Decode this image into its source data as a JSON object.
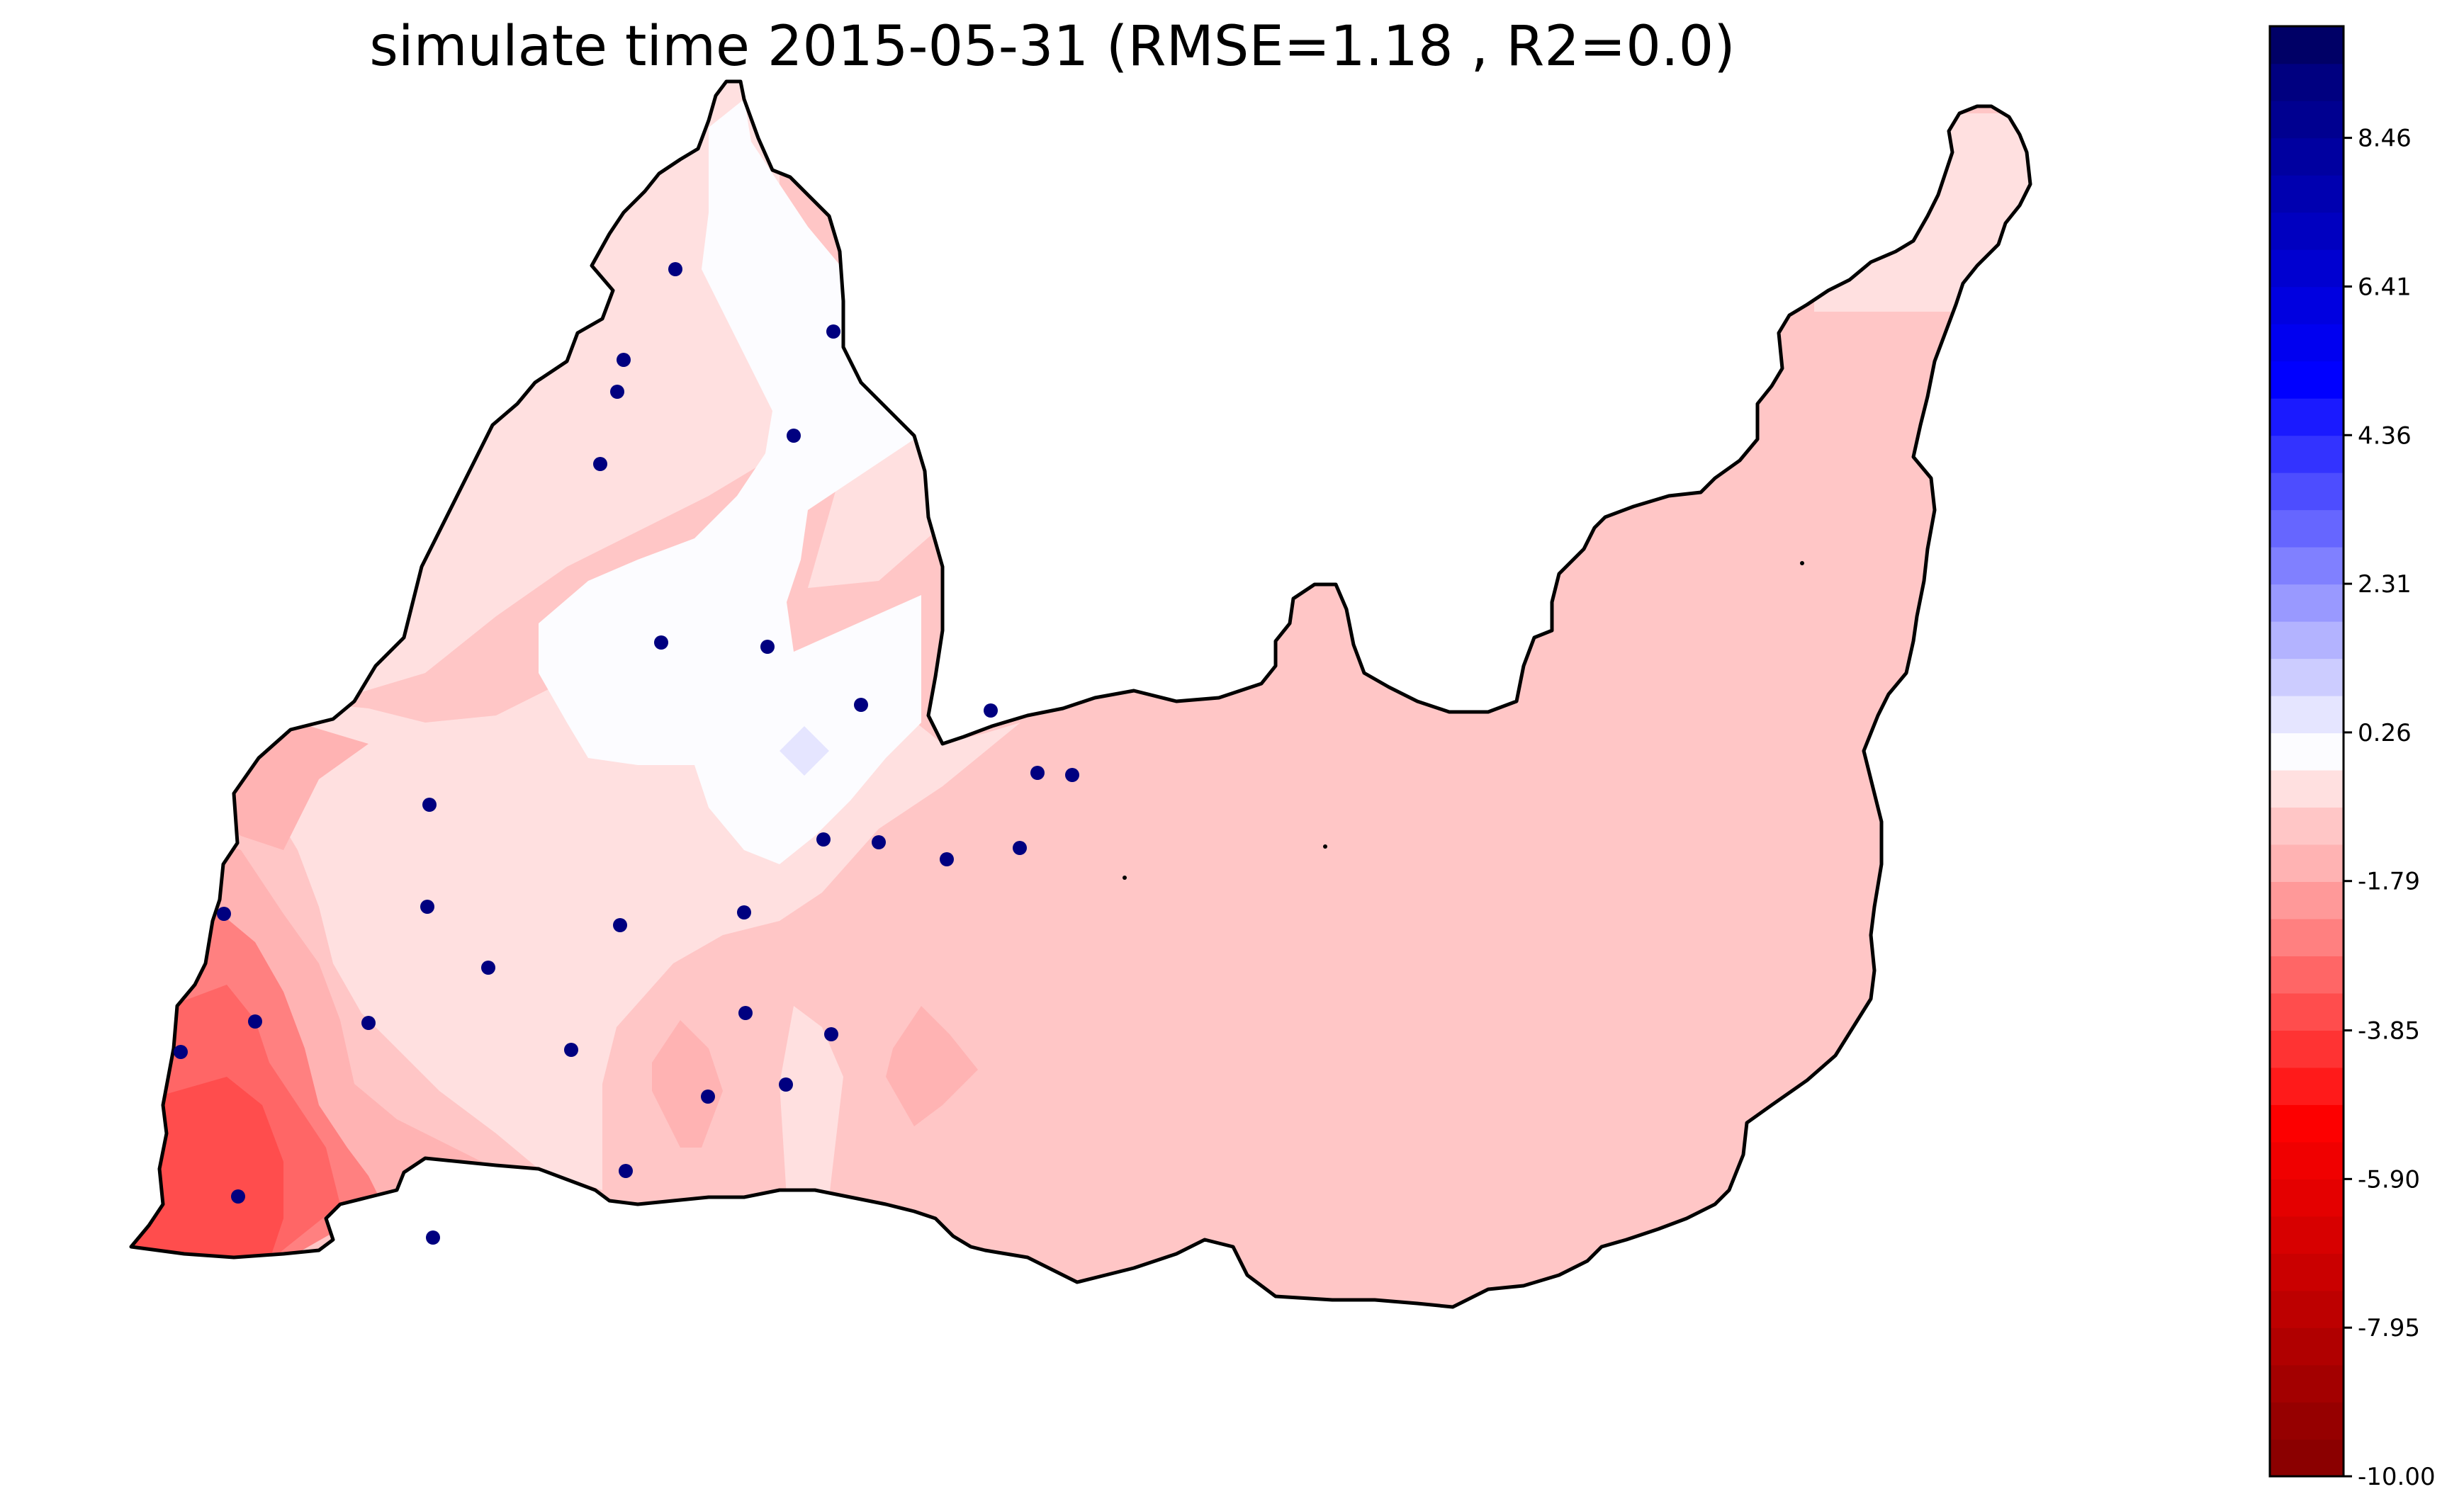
{
  "title": "simulate time 2015-05-31 (RMSE=1.18 , R2=0.0)",
  "colorbar": {
    "min": -10.0,
    "max": 10.0,
    "tick_labels": [
      "8.46",
      "6.41",
      "4.36",
      "2.31",
      "0.26",
      "-1.79",
      "-3.85",
      "-5.90",
      "-7.95",
      "-10.00"
    ],
    "tick_values": [
      8.46,
      6.41,
      4.36,
      2.31,
      0.26,
      -1.79,
      -3.85,
      -5.9,
      -7.95,
      -10.0
    ],
    "colormap": "seismic_r (red negative, white near zero, blue positive)",
    "bands": [
      {
        "value": -9.7,
        "color": "#8b0000"
      },
      {
        "value": -9.2,
        "color": "#960000"
      },
      {
        "value": -8.7,
        "color": "#a30000"
      },
      {
        "value": -8.2,
        "color": "#b00000"
      },
      {
        "value": -7.7,
        "color": "#bd0000"
      },
      {
        "value": -7.2,
        "color": "#ca0000"
      },
      {
        "value": -6.7,
        "color": "#d70000"
      },
      {
        "value": -6.2,
        "color": "#e40000"
      },
      {
        "value": -5.7,
        "color": "#f00000"
      },
      {
        "value": -5.2,
        "color": "#fd0000"
      },
      {
        "value": -4.6,
        "color": "#ff1a1a"
      },
      {
        "value": -4.1,
        "color": "#ff3333"
      },
      {
        "value": -3.6,
        "color": "#ff4d4d"
      },
      {
        "value": -3.1,
        "color": "#ff6666"
      },
      {
        "value": -2.6,
        "color": "#ff8080"
      },
      {
        "value": -2.1,
        "color": "#ff9999"
      },
      {
        "value": -1.5,
        "color": "#ffb3b3"
      },
      {
        "value": -1.0,
        "color": "#ffc6c6"
      },
      {
        "value": -0.5,
        "color": "#ffe0e0"
      },
      {
        "value": 0.0,
        "color": "#fcfcff"
      },
      {
        "value": 0.5,
        "color": "#e5e5ff"
      },
      {
        "value": 1.0,
        "color": "#ccccff"
      },
      {
        "value": 1.5,
        "color": "#b3b3ff"
      },
      {
        "value": 2.0,
        "color": "#9999ff"
      },
      {
        "value": 2.6,
        "color": "#8080ff"
      },
      {
        "value": 3.1,
        "color": "#6666ff"
      },
      {
        "value": 3.6,
        "color": "#4d4dff"
      },
      {
        "value": 4.1,
        "color": "#3333ff"
      },
      {
        "value": 4.6,
        "color": "#1a1aff"
      },
      {
        "value": 5.1,
        "color": "#0000ff"
      },
      {
        "value": 5.6,
        "color": "#0000f0"
      },
      {
        "value": 6.2,
        "color": "#0000e0"
      },
      {
        "value": 6.7,
        "color": "#0000d0"
      },
      {
        "value": 7.2,
        "color": "#0000c0"
      },
      {
        "value": 7.7,
        "color": "#0000b0"
      },
      {
        "value": 8.2,
        "color": "#0000a0"
      },
      {
        "value": 8.7,
        "color": "#000090"
      },
      {
        "value": 9.2,
        "color": "#000080"
      },
      {
        "value": 9.7,
        "color": "#000066"
      }
    ]
  },
  "map": {
    "region_fill_colors": {
      "lightest_pink": "#ffe0e0",
      "near_white": "#fcfcff",
      "light_pink": "#ffc6c6",
      "pink": "#ffb3b3",
      "medium_red": "#ff8080",
      "red": "#ff6666",
      "strong_red": "#ff4d4d",
      "light_blue": "#e5e5ff"
    },
    "station_marker_color": "#000080",
    "boundary_color": "#000000",
    "station_count": 32
  }
}
